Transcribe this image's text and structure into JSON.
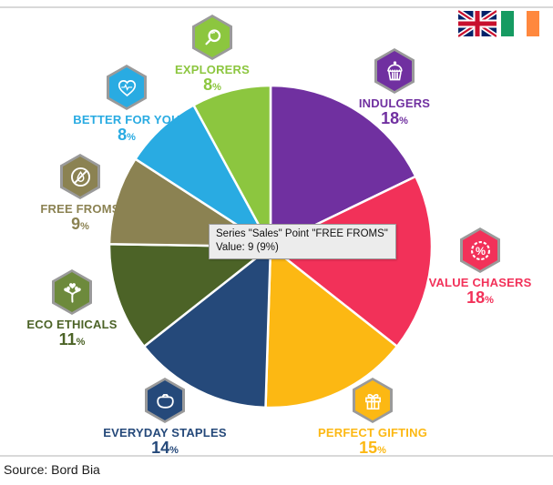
{
  "chart_data": {
    "type": "pie",
    "title": "",
    "series_name": "Sales",
    "legend_position": "around",
    "start_angle_deg": 0,
    "percent_symbol": "%",
    "slice_border_color": "#ffffff",
    "segments": [
      {
        "label": "INDULGERS",
        "value": 18,
        "color": "#7030a0",
        "icon": "cupcake-icon"
      },
      {
        "label": "VALUE CHASERS",
        "value": 18,
        "color": "#f23159",
        "icon": "percent-badge-icon"
      },
      {
        "label": "PERFECT GIFTING",
        "value": 15,
        "color": "#fcb813",
        "icon": "gift-icon"
      },
      {
        "label": "EVERYDAY STAPLES",
        "value": 14,
        "color": "#25497a",
        "icon": "purse-icon"
      },
      {
        "label": "ECO ETHICALS",
        "value": 11,
        "color": "#4c6327",
        "icon_color": "#6d8a3c",
        "icon": "heart-tree-icon"
      },
      {
        "label": "FREE FROMS",
        "value": 9,
        "color": "#8b8252",
        "icon": "no-drop-icon"
      },
      {
        "label": "BETTER FOR YOU",
        "value": 8,
        "color": "#29abe2",
        "icon": "heart-pulse-icon"
      },
      {
        "label": "EXPLORERS",
        "value": 8,
        "color": "#8cc63f",
        "icon": "magnifier-icon"
      }
    ]
  },
  "tooltip": {
    "line1": "Series \"Sales\" Point \"FREE FROMS\"",
    "line2": "Value: 9 (9%)"
  },
  "flags": {
    "uk": "United Kingdom flag",
    "ireland": "Ireland flag"
  },
  "footer": {
    "source": "Source: Bord Bia"
  }
}
